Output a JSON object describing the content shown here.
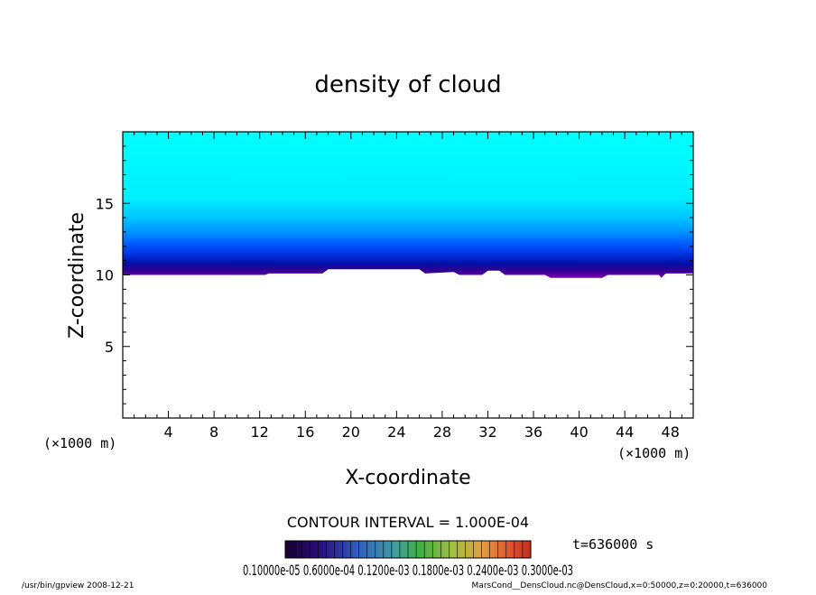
{
  "chart_data": {
    "type": "heatmap",
    "title": "density of cloud",
    "xlabel": "X-coordinate",
    "ylabel": "Z-coordinate",
    "x_unit": "(×1000 m)",
    "y_unit": "(×1000 m)",
    "xlim": [
      0,
      50
    ],
    "ylim": [
      0,
      20
    ],
    "x_ticks": [
      "4",
      "8",
      "12",
      "16",
      "20",
      "24",
      "28",
      "32",
      "36",
      "40",
      "44",
      "48"
    ],
    "y_ticks": [
      "5",
      "10",
      "15"
    ],
    "x_tick_values": [
      4,
      8,
      12,
      16,
      20,
      24,
      28,
      32,
      36,
      40,
      44,
      48
    ],
    "y_tick_values": [
      5,
      10,
      15
    ],
    "contour_interval": "CONTOUR INTERVAL = 1.000E-04",
    "time_label": "t=636000 s",
    "colorbar_labels": "0.10000e-05 0.6000e-04 0.1200e-03 0.1800e-03 0.2400e-03 0.3000e-03",
    "colorbar_range": [
      1e-06,
      0.0003
    ],
    "color_stops": [
      "#00ffff",
      "#00eaff",
      "#00c8ff",
      "#009cff",
      "#0066ff",
      "#0033e6",
      "#0010b0",
      "#2a0080",
      "#7a00b0"
    ],
    "cloud_layer": {
      "base_z": 10,
      "top_z": 20,
      "dense_layer_z": [
        10,
        13
      ],
      "description_values": {
        "max_density": 0.0003,
        "min_density": 1e-06
      }
    }
  },
  "footer": {
    "left": "/usr/bin/gpview   2008-12-21",
    "right": "MarsCond__DensCloud.nc@DensCloud,x=0:50000,z=0:20000,t=636000"
  }
}
